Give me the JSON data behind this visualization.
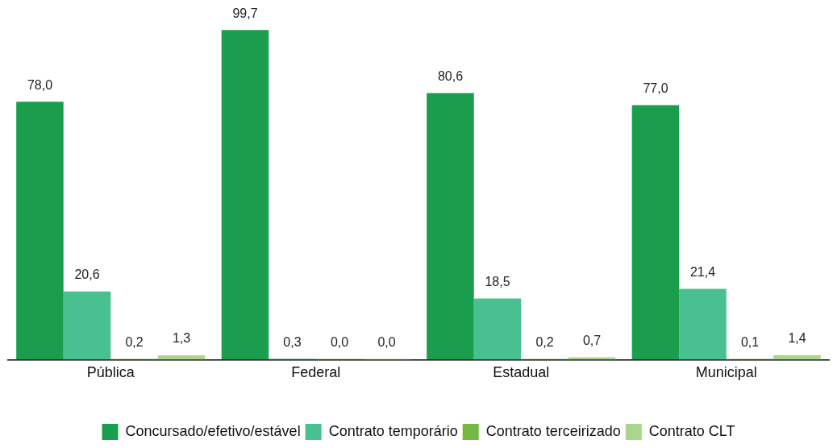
{
  "chart_data": {
    "type": "bar",
    "categories": [
      "Pública",
      "Federal",
      "Estadual",
      "Municipal"
    ],
    "series": [
      {
        "name": "Concursado/efetivo/estável",
        "color": "#1a9e4e",
        "values": [
          78.0,
          99.7,
          80.6,
          77.0
        ],
        "value_labels": [
          "78,0",
          "99,7",
          "80,6",
          "77,0"
        ]
      },
      {
        "name": "Contrato temporário",
        "color": "#48c08f",
        "values": [
          20.6,
          0.3,
          18.5,
          21.4
        ],
        "value_labels": [
          "20,6",
          "0,3",
          "18,5",
          "21,4"
        ]
      },
      {
        "name": "Contrato terceirizado",
        "color": "#72b843",
        "values": [
          0.2,
          0.0,
          0.2,
          0.1
        ],
        "value_labels": [
          "0,2",
          "0,0",
          "0,2",
          "0,1"
        ]
      },
      {
        "name": "Contrato CLT",
        "color": "#a9d68b",
        "values": [
          1.3,
          0.0,
          0.7,
          1.4
        ],
        "value_labels": [
          "1,3",
          "0,0",
          "0,7",
          "1,4"
        ]
      }
    ],
    "grid": false,
    "legend": "bottom"
  }
}
